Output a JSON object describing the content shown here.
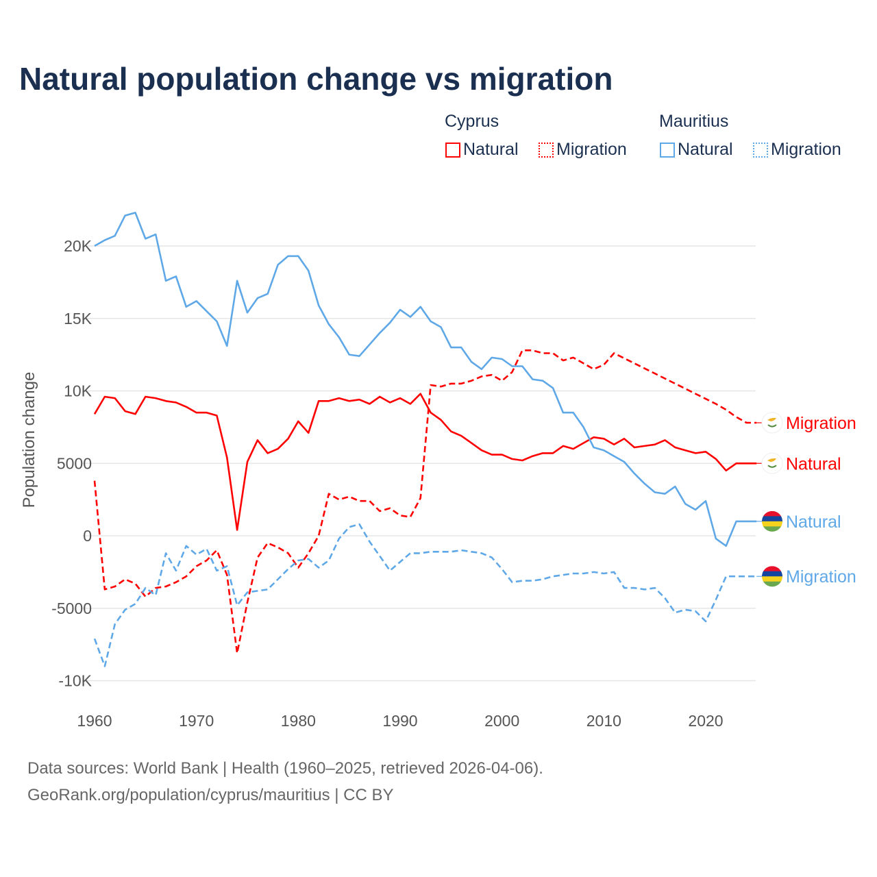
{
  "chart_data": {
    "type": "line",
    "title": "Natural population change vs migration",
    "xlabel": "",
    "ylabel": "Population change",
    "xlim": [
      1960,
      2025
    ],
    "ylim": [
      -10000,
      22500
    ],
    "x_ticks": [
      1960,
      1970,
      1980,
      1990,
      2000,
      2010,
      2020
    ],
    "x_tick_labels": [
      "1960",
      "1970",
      "1980",
      "1990",
      "2000",
      "2010",
      "2020"
    ],
    "y_ticks": [
      -10000,
      -5000,
      0,
      5000,
      10000,
      15000,
      20000
    ],
    "y_tick_labels": [
      "-10K",
      "-5000",
      "0",
      "5000",
      "10K",
      "15K",
      "20K"
    ],
    "grid": true,
    "legend_placement": "top-right",
    "legend_groups": [
      {
        "country": "Cyprus",
        "items": [
          "Natural",
          "Migration"
        ]
      },
      {
        "country": "Mauritius",
        "items": [
          "Natural",
          "Migration"
        ]
      }
    ],
    "x_start": 1960,
    "series": [
      {
        "name": "Cyprus Natural",
        "country": "Cyprus",
        "kind": "Natural",
        "end_label": "Natural",
        "color": "#ff0000",
        "dash": false,
        "flag": "cyprus",
        "values": [
          8400,
          9600,
          9500,
          8600,
          8400,
          9600,
          9500,
          9300,
          9200,
          8900,
          8500,
          8500,
          8300,
          5400,
          400,
          5100,
          6600,
          5700,
          6000,
          6700,
          7900,
          7100,
          9300,
          9300,
          9500,
          9300,
          9400,
          9100,
          9600,
          9200,
          9500,
          9100,
          9800,
          8500,
          8000,
          7200,
          6900,
          6400,
          5900,
          5600,
          5600,
          5300,
          5200,
          5500,
          5700,
          5700,
          6200,
          6000,
          6400,
          6800,
          6700,
          6300,
          6700,
          6100,
          6200,
          6300,
          6600,
          6100,
          5900,
          5700,
          5800,
          5300,
          4500,
          5000,
          5000,
          5000
        ]
      },
      {
        "name": "Cyprus Migration",
        "country": "Cyprus",
        "kind": "Migration",
        "end_label": "Migration",
        "color": "#ff0000",
        "dash": true,
        "flag": "cyprus",
        "values": [
          3800,
          -3700,
          -3500,
          -3000,
          -3300,
          -4200,
          -3600,
          -3500,
          -3200,
          -2800,
          -2100,
          -1700,
          -1000,
          -2700,
          -8100,
          -4600,
          -1500,
          -500,
          -800,
          -1200,
          -2200,
          -1200,
          0,
          2900,
          2500,
          2700,
          2400,
          2400,
          1700,
          1900,
          1400,
          1300,
          2600,
          10400,
          10300,
          10500,
          10500,
          10700,
          11000,
          11100,
          10700,
          11300,
          12800,
          12800,
          12600,
          12600,
          12100,
          12300,
          11900,
          11500,
          11800,
          12600,
          12250,
          11900,
          11550,
          11200,
          10850,
          10500,
          10150,
          9800,
          9450,
          9100,
          8700,
          8200,
          7800,
          7800
        ]
      },
      {
        "name": "Mauritius Natural",
        "country": "Mauritius",
        "kind": "Natural",
        "end_label": "Natural",
        "color": "#5fa8e8",
        "dash": false,
        "flag": "mauritius",
        "values": [
          20000,
          20400,
          20700,
          22100,
          22300,
          20500,
          20800,
          17600,
          17900,
          15800,
          16200,
          15500,
          14800,
          13100,
          17600,
          15400,
          16400,
          16700,
          18700,
          19300,
          19300,
          18300,
          15900,
          14600,
          13700,
          12500,
          12400,
          13200,
          14000,
          14700,
          15600,
          15100,
          15800,
          14800,
          14400,
          13000,
          13000,
          12000,
          11500,
          12300,
          12200,
          11700,
          11700,
          10800,
          10700,
          10200,
          8500,
          8500,
          7500,
          6100,
          5900,
          5500,
          5100,
          4300,
          3600,
          3000,
          2900,
          3400,
          2200,
          1800,
          2400,
          -200,
          -700,
          1000,
          1000,
          1000
        ]
      },
      {
        "name": "Mauritius Migration",
        "country": "Mauritius",
        "kind": "Migration",
        "end_label": "Migration",
        "color": "#5fa8e8",
        "dash": true,
        "flag": "mauritius",
        "values": [
          -7100,
          -9000,
          -6100,
          -5100,
          -4700,
          -3600,
          -4100,
          -1200,
          -2400,
          -700,
          -1300,
          -900,
          -2400,
          -2100,
          -4800,
          -3900,
          -3800,
          -3700,
          -3000,
          -2300,
          -1700,
          -1600,
          -2200,
          -1700,
          -200,
          600,
          800,
          -400,
          -1400,
          -2400,
          -1800,
          -1200,
          -1200,
          -1100,
          -1100,
          -1100,
          -1000,
          -1100,
          -1200,
          -1500,
          -2300,
          -3200,
          -3100,
          -3100,
          -3000,
          -2800,
          -2700,
          -2600,
          -2600,
          -2500,
          -2600,
          -2500,
          -3600,
          -3600,
          -3700,
          -3600,
          -4300,
          -5300,
          -5100,
          -5200,
          -5900,
          -4400,
          -2800,
          -2800,
          -2800,
          -2800
        ]
      }
    ]
  },
  "legend": {
    "cyprus": {
      "title": "Cyprus",
      "natural": "Natural",
      "migration": "Migration"
    },
    "mauritius": {
      "title": "Mauritius",
      "natural": "Natural",
      "migration": "Migration"
    }
  },
  "footer": {
    "line1": "Data sources: World Bank | Health (1960–2025, retrieved 2026-04-06).",
    "line2": "GeoRank.org/population/cyprus/mauritius | CC BY"
  }
}
